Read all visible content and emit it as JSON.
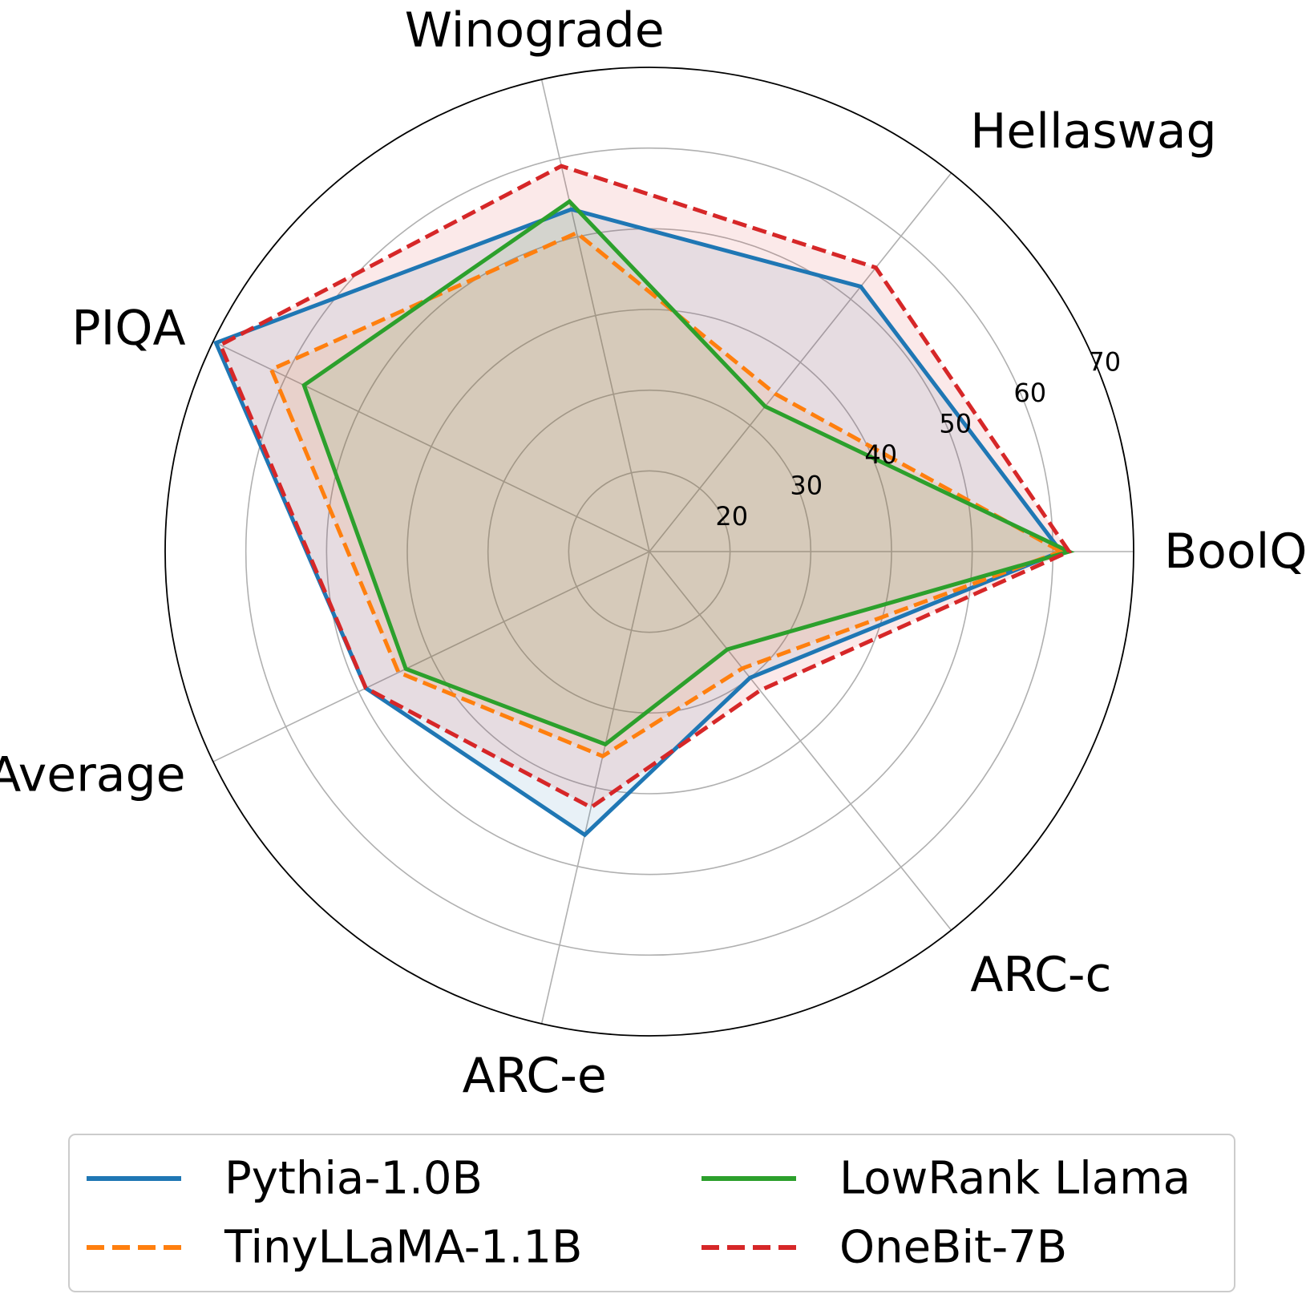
{
  "chart_data": {
    "type": "radar",
    "categories": [
      "BoolQ",
      "Hellaswag",
      "Winograde",
      "PIQA",
      "Average",
      "ARC-e",
      "ARC-c"
    ],
    "rlim": [
      10,
      70
    ],
    "rticks": [
      20,
      30,
      40,
      50,
      60,
      70
    ],
    "grid": true,
    "legend_position": "bottom",
    "series": [
      {
        "name": "Pythia-1.0B",
        "color": "#1f77b4",
        "dash": "solid",
        "values": [
          61.0,
          52.0,
          53.5,
          69.6,
          49.0,
          46.0,
          30.0
        ]
      },
      {
        "name": "TinyLLaMA-1.1B",
        "color": "#ff7f0e",
        "dash": "dashed",
        "values": [
          61.0,
          35.0,
          50.5,
          62.0,
          44.5,
          36.0,
          28.5
        ]
      },
      {
        "name": "LowRank Llama",
        "color": "#2ca02c",
        "dash": "solid",
        "values": [
          62.0,
          33.0,
          54.5,
          57.5,
          43.5,
          34.5,
          25.5
        ]
      },
      {
        "name": "OneBit-7B",
        "color": "#d62728",
        "dash": "dashed",
        "values": [
          62.0,
          55.0,
          59.0,
          69.0,
          49.0,
          42.5,
          32.0
        ]
      }
    ]
  }
}
